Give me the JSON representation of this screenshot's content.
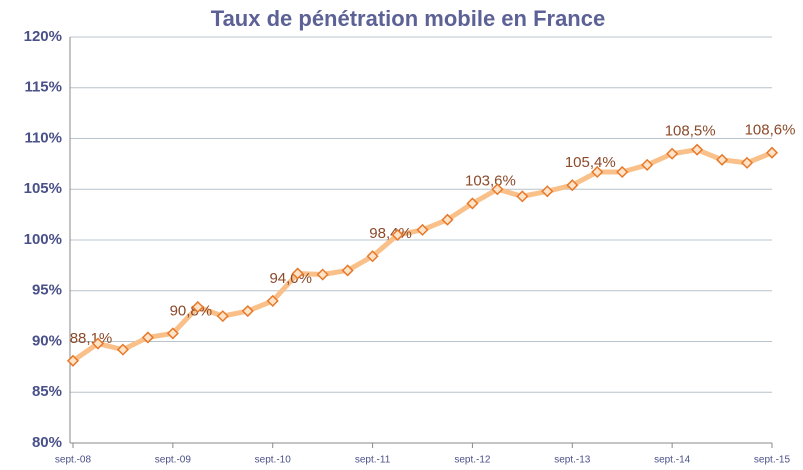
{
  "chart_data": {
    "type": "line",
    "title": "Taux de pénétration mobile en France",
    "categories": [
      "sept.-08",
      null,
      null,
      null,
      "sept.-09",
      null,
      null,
      null,
      "sept.-10",
      null,
      null,
      null,
      "sept.-11",
      null,
      null,
      null,
      "sept.-12",
      null,
      null,
      null,
      "sept.-13",
      null,
      null,
      null,
      "sept.-14",
      null,
      null,
      null,
      "sept.-15"
    ],
    "series": [
      {
        "name": "Taux de pénétration",
        "color": "#f9c08a",
        "marker_color": "#e8782a",
        "values": [
          88.1,
          89.8,
          89.2,
          90.4,
          90.8,
          93.4,
          92.5,
          93.0,
          94.0,
          96.7,
          96.6,
          97.0,
          98.4,
          100.5,
          101.0,
          102.0,
          103.6,
          105.0,
          104.3,
          104.8,
          105.4,
          106.7,
          106.7,
          107.4,
          108.5,
          108.9,
          107.9,
          107.6,
          108.6
        ],
        "value_labels": [
          "88,1%",
          null,
          null,
          null,
          "90,8%",
          null,
          null,
          null,
          "94,0%",
          null,
          null,
          null,
          "98,4%",
          null,
          null,
          null,
          "103,6%",
          null,
          null,
          null,
          "105,4%",
          null,
          null,
          null,
          "108,5%",
          null,
          null,
          null,
          "108,6%"
        ]
      }
    ],
    "ylim": [
      80,
      120
    ],
    "yticks": [
      {
        "value": 80,
        "label": "80%"
      },
      {
        "value": 85,
        "label": "85%"
      },
      {
        "value": 90,
        "label": "90%"
      },
      {
        "value": 95,
        "label": "95%"
      },
      {
        "value": 100,
        "label": "100%"
      },
      {
        "value": 105,
        "label": "105%"
      },
      {
        "value": 110,
        "label": "110%"
      },
      {
        "value": 115,
        "label": "115%"
      },
      {
        "value": 120,
        "label": "120%"
      }
    ],
    "grid": true
  }
}
